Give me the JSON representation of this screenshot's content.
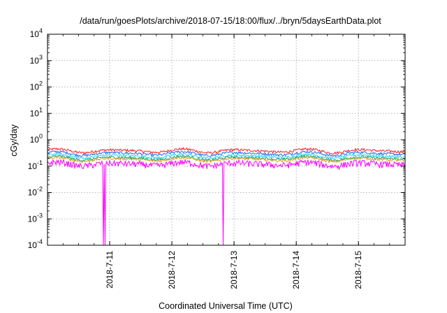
{
  "chart_data": {
    "type": "line",
    "title": "/data/run/goesPlots/archive/2018-07-15/18:00/flux/../bryn/5daysEarthData.plot",
    "xlabel": "Coordinated Universal Time (UTC)",
    "ylabel": "cGy/day",
    "yscale": "log",
    "ylim": [
      0.0001,
      10000
    ],
    "y_ticks": [
      {
        "base": "10",
        "exp": "-4",
        "value": 0.0001
      },
      {
        "base": "10",
        "exp": "-3",
        "value": 0.001
      },
      {
        "base": "10",
        "exp": "-2",
        "value": 0.01
      },
      {
        "base": "10",
        "exp": "-1",
        "value": 0.1
      },
      {
        "base": "10",
        "exp": "0",
        "value": 1
      },
      {
        "base": "10",
        "exp": "1",
        "value": 10
      },
      {
        "base": "10",
        "exp": "2",
        "value": 100
      },
      {
        "base": "10",
        "exp": "3",
        "value": 1000
      },
      {
        "base": "10",
        "exp": "4",
        "value": 10000
      }
    ],
    "xlim": [
      "2018-07-10T00:00",
      "2018-07-15T18:00"
    ],
    "x_ticks": [
      "2018-7-11",
      "2018-7-12",
      "2018-7-13",
      "2018-7-14",
      "2018-7-15"
    ],
    "grid": true,
    "legend": "none",
    "series": [
      {
        "color": "#ff2020",
        "level": 0.38
      },
      {
        "color": "#1e6cff",
        "level": 0.3
      },
      {
        "color": "#2ad7f0",
        "level": 0.24
      },
      {
        "color": "#10a070",
        "level": 0.2
      },
      {
        "color": "#e0a020",
        "level": 0.18
      },
      {
        "color": "#ff00ff",
        "level": 0.12
      }
    ],
    "dropouts": [
      "2018-07-10T21:40",
      "2018-07-10T22:05",
      "2018-07-12T19:45",
      "2018-07-12T19:55"
    ]
  }
}
